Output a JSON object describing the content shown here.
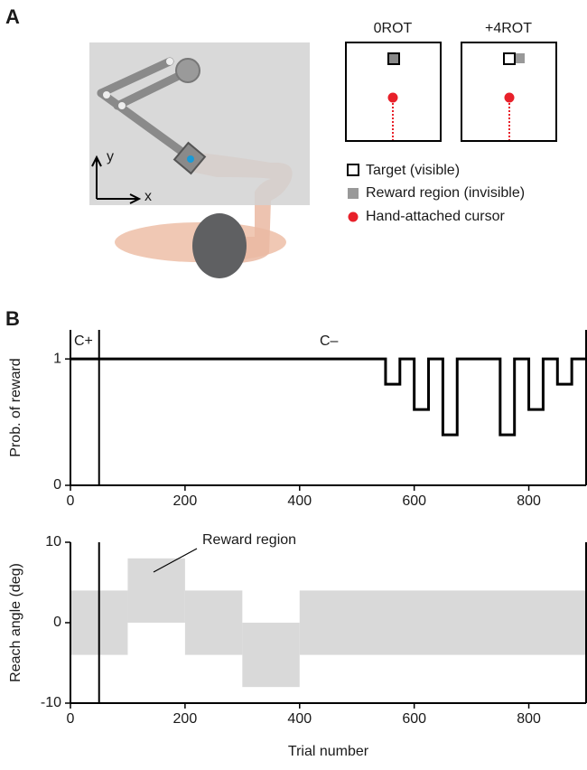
{
  "panel_a": {
    "label": "A",
    "axis_x": "x",
    "axis_y": "y",
    "conditions": [
      "0ROT",
      "+4ROT"
    ],
    "legend": [
      "Target (visible)",
      "Reward region (invisible)",
      "Hand-attached cursor"
    ]
  },
  "panel_b": {
    "label": "B"
  },
  "chart_data": [
    {
      "type": "line",
      "ylabel": "Prob. of reward",
      "color": "#000000",
      "x": [
        0,
        550,
        550,
        575,
        575,
        600,
        600,
        625,
        625,
        650,
        650,
        675,
        675,
        750,
        750,
        775,
        775,
        800,
        800,
        825,
        825,
        850,
        850,
        875,
        875,
        900
      ],
      "values": [
        1,
        1,
        0.8,
        0.8,
        1,
        1,
        0.6,
        0.6,
        1,
        1,
        0.4,
        0.4,
        1,
        1,
        0.4,
        0.4,
        1,
        1,
        0.6,
        0.6,
        1,
        1,
        0.8,
        0.8,
        1,
        1
      ],
      "xlim": [
        0,
        900
      ],
      "ylim": [
        0,
        1.23
      ],
      "xticks": [
        0,
        200,
        400,
        600,
        800
      ],
      "yticks": [
        0,
        1
      ],
      "phase_labels": [
        "C+",
        "C–"
      ],
      "phase_boundary": 50
    },
    {
      "type": "band",
      "ylabel": "Reach angle (deg)",
      "xlabel": "Trial number",
      "annotation": "Reward region",
      "color": "#d9d9d9",
      "x_start": [
        0,
        100,
        200,
        300,
        400
      ],
      "x_end": [
        100,
        200,
        300,
        400,
        900
      ],
      "low": [
        -4,
        0,
        -4,
        -8,
        -4
      ],
      "high": [
        4,
        8,
        4,
        0,
        4
      ],
      "xlim": [
        0,
        900
      ],
      "ylim": [
        -10,
        10
      ],
      "xticks": [
        0,
        200,
        400,
        600,
        800
      ],
      "yticks": [
        -10,
        0,
        10
      ],
      "phase_boundary": 50
    }
  ]
}
